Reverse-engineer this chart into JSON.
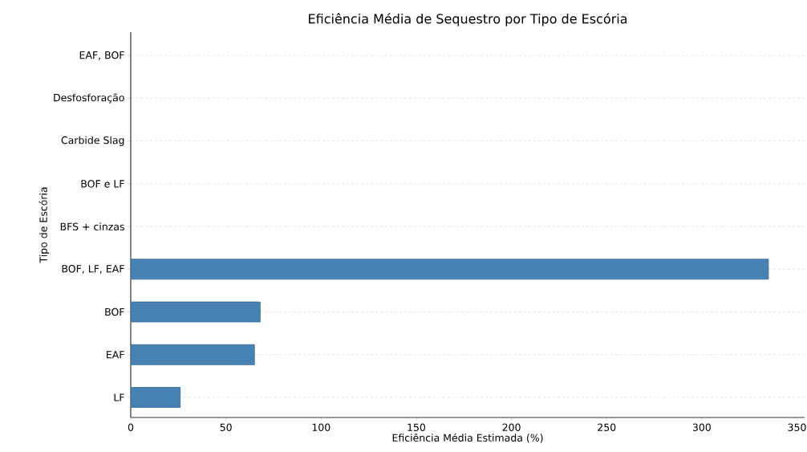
{
  "chart_data": {
    "type": "bar",
    "orientation": "horizontal",
    "title": "Eficiência Média de Sequestro por Tipo de Escória",
    "xlabel": "Eficiência Média Estimada (%)",
    "ylabel": "Tipo de Escória",
    "categories": [
      "EAF, BOF",
      "Desfosforação",
      "Carbide Slag",
      "BOF e LF",
      "BFS + cinzas",
      "BOF, LF, EAF",
      "BOF",
      "EAF",
      "LF"
    ],
    "values": [
      null,
      null,
      null,
      null,
      null,
      335,
      68,
      65,
      26
    ],
    "color": "#4682b4",
    "xlim": [
      0,
      354
    ],
    "xticks": [
      0,
      50,
      100,
      150,
      200,
      250,
      300,
      350
    ],
    "grid": "y"
  }
}
